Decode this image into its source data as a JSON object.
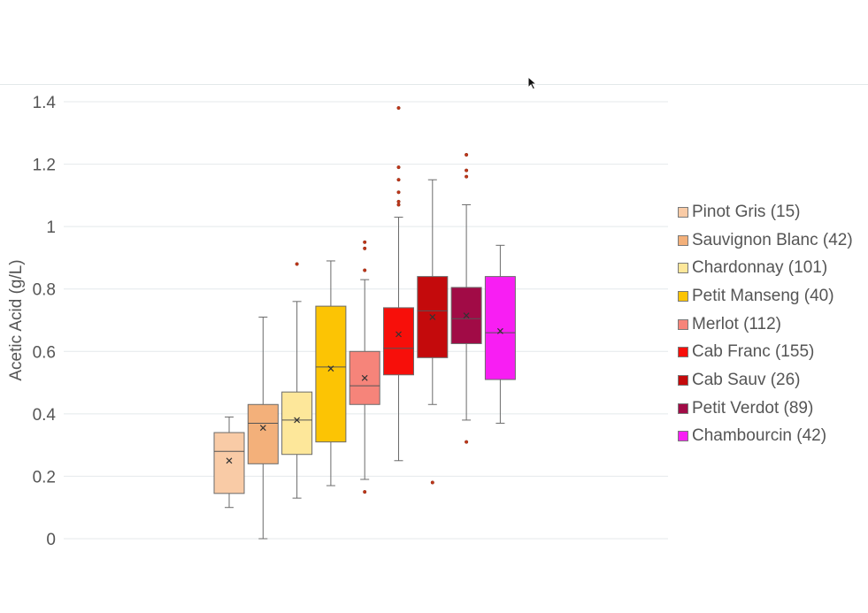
{
  "chart_data": {
    "type": "box",
    "ylabel": "Acetic Acid (g/L)",
    "xlabel": "",
    "ylim": [
      0,
      1.4
    ],
    "yticks": [
      {
        "value": 0,
        "label": "0"
      },
      {
        "value": 0.2,
        "label": "0.2"
      },
      {
        "value": 0.4,
        "label": "0.4"
      },
      {
        "value": 0.6,
        "label": "0.6"
      },
      {
        "value": 0.8,
        "label": "0.8"
      },
      {
        "value": 1.0,
        "label": "1"
      },
      {
        "value": 1.2,
        "label": "1.2"
      },
      {
        "value": 1.4,
        "label": "1.4"
      }
    ],
    "grid": true,
    "legend_position": "right",
    "series": [
      {
        "name": "Pinot Gris (15)",
        "color": "#f9cba6",
        "whisker_low": 0.1,
        "q1": 0.145,
        "median": 0.28,
        "q3": 0.34,
        "whisker_high": 0.39,
        "mean": 0.25,
        "outliers": []
      },
      {
        "name": "Sauvignon Blanc (42)",
        "color": "#f3b07a",
        "whisker_low": 0.0,
        "q1": 0.24,
        "median": 0.37,
        "q3": 0.43,
        "whisker_high": 0.71,
        "mean": 0.355,
        "outliers": []
      },
      {
        "name": "Chardonnay (101)",
        "color": "#fde79a",
        "whisker_low": 0.13,
        "q1": 0.27,
        "median": 0.38,
        "q3": 0.47,
        "whisker_high": 0.76,
        "mean": 0.38,
        "outliers": [
          0.88
        ]
      },
      {
        "name": "Petit Manseng (40)",
        "color": "#fcc404",
        "whisker_low": 0.17,
        "q1": 0.31,
        "median": 0.55,
        "q3": 0.745,
        "whisker_high": 0.89,
        "mean": 0.545,
        "outliers": []
      },
      {
        "name": "Merlot (112)",
        "color": "#f6847a",
        "whisker_low": 0.19,
        "q1": 0.43,
        "median": 0.49,
        "q3": 0.6,
        "whisker_high": 0.83,
        "mean": 0.515,
        "outliers": [
          0.15,
          0.86,
          0.93,
          0.95
        ]
      },
      {
        "name": "Cab Franc (155)",
        "color": "#f70f0a",
        "whisker_low": 0.25,
        "q1": 0.525,
        "median": 0.61,
        "q3": 0.74,
        "whisker_high": 1.03,
        "mean": 0.655,
        "outliers": [
          1.07,
          1.08,
          1.11,
          1.15,
          1.19,
          1.38
        ]
      },
      {
        "name": "Cab Sauv (26)",
        "color": "#c40a0c",
        "whisker_low": 0.43,
        "q1": 0.58,
        "median": 0.73,
        "q3": 0.84,
        "whisker_high": 1.15,
        "mean": 0.71,
        "outliers": [
          0.18
        ]
      },
      {
        "name": "Petit Verdot (89)",
        "color": "#a10b46",
        "whisker_low": 0.38,
        "q1": 0.625,
        "median": 0.705,
        "q3": 0.805,
        "whisker_high": 1.07,
        "mean": 0.715,
        "outliers": [
          0.31,
          1.16,
          1.18,
          1.23
        ]
      },
      {
        "name": "Chambourcin (42)",
        "color": "#f81ef3",
        "whisker_low": 0.37,
        "q1": 0.51,
        "median": 0.66,
        "q3": 0.84,
        "whisker_high": 0.94,
        "mean": 0.665,
        "outliers": []
      }
    ]
  }
}
